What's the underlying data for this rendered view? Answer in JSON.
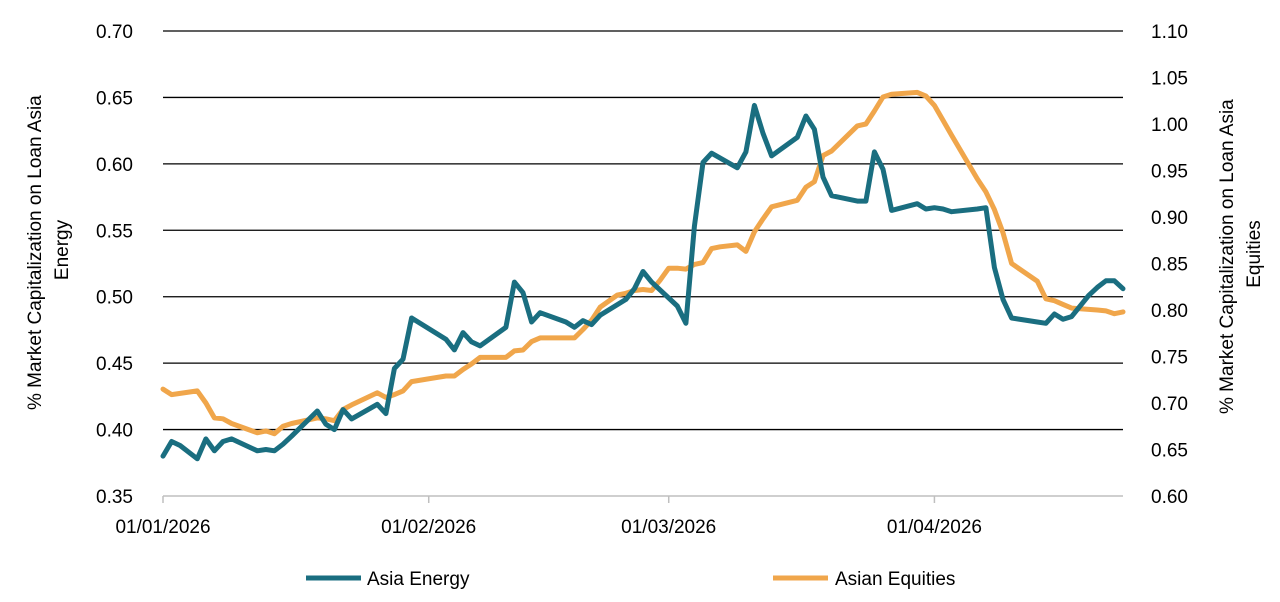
{
  "chart_data": {
    "type": "line",
    "x_type": "date",
    "xlim": [
      "2026-01-01",
      "2026-04-23"
    ],
    "x_ticks": [
      {
        "date": "2026-01-01",
        "label": "01/01/2026"
      },
      {
        "date": "2026-02-01",
        "label": "01/02/2026"
      },
      {
        "date": "2026-03-01",
        "label": "01/03/2026"
      },
      {
        "date": "2026-04-01",
        "label": "01/04/2026"
      }
    ],
    "y_left": {
      "label": "% Market Capitalization on Loan Asia Energy",
      "label_lines": [
        "% Market Capitalization on Loan Asia",
        "Energy"
      ],
      "lim": [
        0.35,
        0.7
      ],
      "ticks": [
        "0.35",
        "0.40",
        "0.45",
        "0.50",
        "0.55",
        "0.60",
        "0.65",
        "0.70"
      ]
    },
    "y_right": {
      "label": "% Market Capitalization on Loan Asia Equities",
      "label_lines": [
        "% Market Capitalization on Loan Asia",
        "Equities"
      ],
      "lim": [
        0.6,
        1.1
      ],
      "ticks": [
        "0.60",
        "0.65",
        "0.70",
        "0.75",
        "0.80",
        "0.85",
        "0.90",
        "0.95",
        "1.00",
        "1.05",
        "1.10"
      ]
    },
    "grid": "horizontal",
    "legend_position": "bottom",
    "series": [
      {
        "name": "Asia Energy",
        "axis": "left",
        "color": "#1a6e80",
        "points": [
          [
            "2026-01-01",
            0.38
          ],
          [
            "2026-01-02",
            0.391
          ],
          [
            "2026-01-03",
            0.388
          ],
          [
            "2026-01-05",
            0.378
          ],
          [
            "2026-01-06",
            0.393
          ],
          [
            "2026-01-07",
            0.384
          ],
          [
            "2026-01-08",
            0.391
          ],
          [
            "2026-01-09",
            0.393
          ],
          [
            "2026-01-12",
            0.384
          ],
          [
            "2026-01-13",
            0.385
          ],
          [
            "2026-01-14",
            0.384
          ],
          [
            "2026-01-15",
            0.389
          ],
          [
            "2026-01-16",
            0.395
          ],
          [
            "2026-01-19",
            0.414
          ],
          [
            "2026-01-20",
            0.404
          ],
          [
            "2026-01-21",
            0.4
          ],
          [
            "2026-01-22",
            0.415
          ],
          [
            "2026-01-23",
            0.408
          ],
          [
            "2026-01-26",
            0.419
          ],
          [
            "2026-01-27",
            0.412
          ],
          [
            "2026-01-28",
            0.446
          ],
          [
            "2026-01-29",
            0.453
          ],
          [
            "2026-01-30",
            0.484
          ],
          [
            "2026-02-03",
            0.468
          ],
          [
            "2026-02-04",
            0.46
          ],
          [
            "2026-02-05",
            0.473
          ],
          [
            "2026-02-06",
            0.466
          ],
          [
            "2026-02-07",
            0.463
          ],
          [
            "2026-02-10",
            0.477
          ],
          [
            "2026-02-11",
            0.511
          ],
          [
            "2026-02-12",
            0.503
          ],
          [
            "2026-02-13",
            0.481
          ],
          [
            "2026-02-14",
            0.488
          ],
          [
            "2026-02-17",
            0.481
          ],
          [
            "2026-02-18",
            0.477
          ],
          [
            "2026-02-19",
            0.482
          ],
          [
            "2026-02-20",
            0.479
          ],
          [
            "2026-02-21",
            0.486
          ],
          [
            "2026-02-24",
            0.498
          ],
          [
            "2026-02-25",
            0.506
          ],
          [
            "2026-02-26",
            0.519
          ],
          [
            "2026-02-27",
            0.511
          ],
          [
            "2026-03-02",
            0.493
          ],
          [
            "2026-03-03",
            0.48
          ],
          [
            "2026-03-04",
            0.553
          ],
          [
            "2026-03-05",
            0.601
          ],
          [
            "2026-03-06",
            0.608
          ],
          [
            "2026-03-09",
            0.597
          ],
          [
            "2026-03-10",
            0.609
          ],
          [
            "2026-03-11",
            0.644
          ],
          [
            "2026-03-12",
            0.623
          ],
          [
            "2026-03-13",
            0.606
          ],
          [
            "2026-03-16",
            0.62
          ],
          [
            "2026-03-17",
            0.636
          ],
          [
            "2026-03-18",
            0.626
          ],
          [
            "2026-03-19",
            0.59
          ],
          [
            "2026-03-20",
            0.576
          ],
          [
            "2026-03-23",
            0.572
          ],
          [
            "2026-03-24",
            0.572
          ],
          [
            "2026-03-25",
            0.609
          ],
          [
            "2026-03-26",
            0.596
          ],
          [
            "2026-03-27",
            0.565
          ],
          [
            "2026-03-30",
            0.57
          ],
          [
            "2026-03-31",
            0.566
          ],
          [
            "2026-04-01",
            0.567
          ],
          [
            "2026-04-02",
            0.566
          ],
          [
            "2026-04-03",
            0.564
          ],
          [
            "2026-04-06",
            0.566
          ],
          [
            "2026-04-07",
            0.567
          ],
          [
            "2026-04-08",
            0.522
          ],
          [
            "2026-04-09",
            0.498
          ],
          [
            "2026-04-10",
            0.484
          ],
          [
            "2026-04-13",
            0.481
          ],
          [
            "2026-04-14",
            0.48
          ],
          [
            "2026-04-15",
            0.487
          ],
          [
            "2026-04-16",
            0.483
          ],
          [
            "2026-04-17",
            0.485
          ],
          [
            "2026-04-19",
            0.501
          ],
          [
            "2026-04-20",
            0.507
          ],
          [
            "2026-04-21",
            0.512
          ],
          [
            "2026-04-22",
            0.512
          ],
          [
            "2026-04-23",
            0.506
          ]
        ]
      },
      {
        "name": "Asian Equities",
        "axis": "right",
        "color": "#f0a64b",
        "points": [
          [
            "2026-01-01",
            0.715
          ],
          [
            "2026-01-02",
            0.709
          ],
          [
            "2026-01-05",
            0.713
          ],
          [
            "2026-01-06",
            0.7
          ],
          [
            "2026-01-07",
            0.684
          ],
          [
            "2026-01-08",
            0.683
          ],
          [
            "2026-01-09",
            0.678
          ],
          [
            "2026-01-12",
            0.668
          ],
          [
            "2026-01-13",
            0.67
          ],
          [
            "2026-01-14",
            0.667
          ],
          [
            "2026-01-15",
            0.675
          ],
          [
            "2026-01-16",
            0.678
          ],
          [
            "2026-01-19",
            0.684
          ],
          [
            "2026-01-20",
            0.683
          ],
          [
            "2026-01-21",
            0.681
          ],
          [
            "2026-01-22",
            0.693
          ],
          [
            "2026-01-23",
            0.698
          ],
          [
            "2026-01-26",
            0.711
          ],
          [
            "2026-01-27",
            0.706
          ],
          [
            "2026-01-28",
            0.709
          ],
          [
            "2026-01-29",
            0.713
          ],
          [
            "2026-01-30",
            0.723
          ],
          [
            "2026-02-03",
            0.729
          ],
          [
            "2026-02-04",
            0.729
          ],
          [
            "2026-02-05",
            0.736
          ],
          [
            "2026-02-06",
            0.742
          ],
          [
            "2026-02-07",
            0.749
          ],
          [
            "2026-02-10",
            0.749
          ],
          [
            "2026-02-11",
            0.756
          ],
          [
            "2026-02-12",
            0.757
          ],
          [
            "2026-02-13",
            0.766
          ],
          [
            "2026-02-14",
            0.77
          ],
          [
            "2026-02-17",
            0.77
          ],
          [
            "2026-02-18",
            0.77
          ],
          [
            "2026-02-19",
            0.779
          ],
          [
            "2026-02-20",
            0.789
          ],
          [
            "2026-02-21",
            0.803
          ],
          [
            "2026-02-23",
            0.816
          ],
          [
            "2026-02-24",
            0.818
          ],
          [
            "2026-02-25",
            0.821
          ],
          [
            "2026-02-26",
            0.822
          ],
          [
            "2026-02-27",
            0.821
          ],
          [
            "2026-02-28",
            0.832
          ],
          [
            "2026-03-01",
            0.845
          ],
          [
            "2026-03-02",
            0.845
          ],
          [
            "2026-03-03",
            0.844
          ],
          [
            "2026-03-04",
            0.849
          ],
          [
            "2026-03-05",
            0.851
          ],
          [
            "2026-03-06",
            0.866
          ],
          [
            "2026-03-07",
            0.868
          ],
          [
            "2026-03-09",
            0.87
          ],
          [
            "2026-03-10",
            0.863
          ],
          [
            "2026-03-11",
            0.884
          ],
          [
            "2026-03-12",
            0.898
          ],
          [
            "2026-03-13",
            0.911
          ],
          [
            "2026-03-16",
            0.918
          ],
          [
            "2026-03-17",
            0.932
          ],
          [
            "2026-03-18",
            0.938
          ],
          [
            "2026-03-19",
            0.966
          ],
          [
            "2026-03-20",
            0.971
          ],
          [
            "2026-03-23",
            0.998
          ],
          [
            "2026-03-24",
            1.0
          ],
          [
            "2026-03-25",
            1.014
          ],
          [
            "2026-03-26",
            1.029
          ],
          [
            "2026-03-27",
            1.032
          ],
          [
            "2026-03-30",
            1.034
          ],
          [
            "2026-03-31",
            1.03
          ],
          [
            "2026-04-01",
            1.02
          ],
          [
            "2026-04-02",
            1.004
          ],
          [
            "2026-04-03",
            0.988
          ],
          [
            "2026-04-06",
            0.941
          ],
          [
            "2026-04-07",
            0.927
          ],
          [
            "2026-04-08",
            0.908
          ],
          [
            "2026-04-09",
            0.883
          ],
          [
            "2026-04-10",
            0.85
          ],
          [
            "2026-04-13",
            0.831
          ],
          [
            "2026-04-14",
            0.812
          ],
          [
            "2026-04-15",
            0.81
          ],
          [
            "2026-04-16",
            0.806
          ],
          [
            "2026-04-17",
            0.802
          ],
          [
            "2026-04-20",
            0.8
          ],
          [
            "2026-04-21",
            0.799
          ],
          [
            "2026-04-22",
            0.796
          ],
          [
            "2026-04-23",
            0.798
          ]
        ]
      }
    ]
  }
}
